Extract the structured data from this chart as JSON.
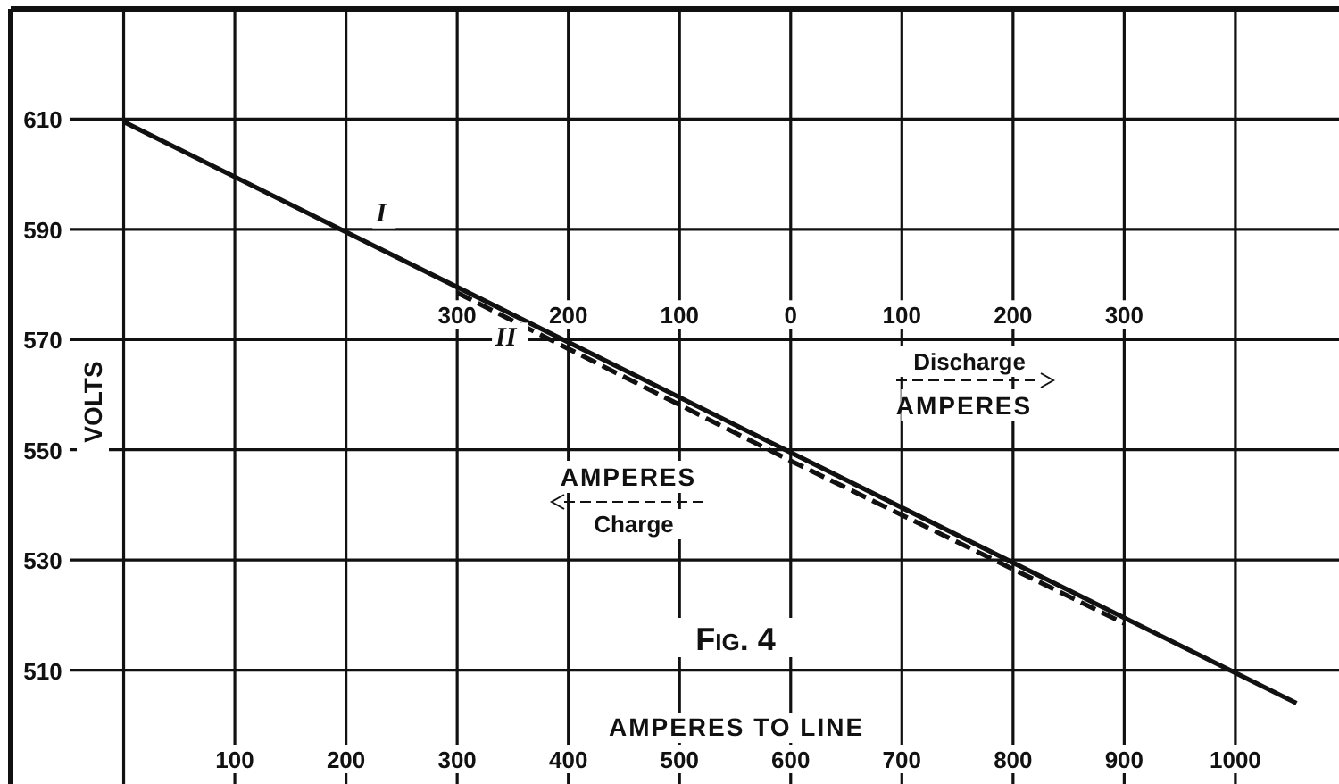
{
  "chart_data": {
    "type": "line",
    "xlabel": "AMPERES TO LINE",
    "ylabel": "VOLTS",
    "xlim": [
      -100,
      1090
    ],
    "ylim": [
      490,
      630
    ],
    "xticks": [
      {
        "value": 0,
        "label": null
      },
      100,
      200,
      300,
      400,
      500,
      600,
      700,
      800,
      900,
      1000
    ],
    "yticks": [
      510,
      530,
      550,
      570,
      590,
      610
    ],
    "x2lim": [
      -700,
      490
    ],
    "x2ticks": [
      {
        "value": -300,
        "label": "300"
      },
      {
        "value": -200,
        "label": "200"
      },
      {
        "value": -100,
        "label": "100"
      },
      0,
      100,
      200,
      300
    ],
    "grid": true,
    "series": [
      {
        "name": "I",
        "color": "#111111",
        "line_style": "solid",
        "x": [
          0,
          1055
        ],
        "values": [
          610,
          504.5
        ]
      },
      {
        "name": "II",
        "color": "#111111",
        "line_style": "dashed",
        "x": [
          300,
          600,
          900
        ],
        "values": [
          578.5,
          548,
          518.5
        ]
      }
    ],
    "annotations": [
      "Discharge",
      "AMPERES",
      "AMPERES",
      "Charge",
      "Fig. 4"
    ]
  }
}
